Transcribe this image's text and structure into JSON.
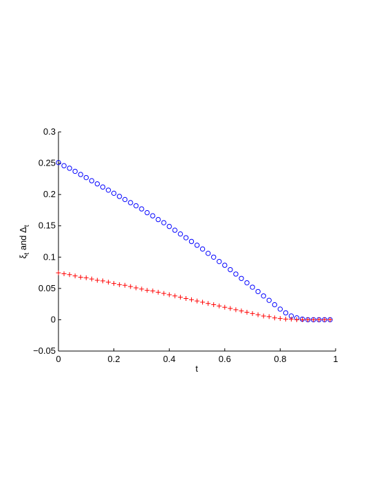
{
  "chart_data": {
    "type": "scatter",
    "x_label": "t",
    "y_label": [
      "ξ",
      "t",
      " and Δ",
      "t"
    ],
    "x": [
      0,
      0.02,
      0.04,
      0.06,
      0.08,
      0.1,
      0.12,
      0.14,
      0.16,
      0.18,
      0.2,
      0.22,
      0.24,
      0.26,
      0.28,
      0.3,
      0.32,
      0.34,
      0.36,
      0.38,
      0.4,
      0.42,
      0.44,
      0.46,
      0.48,
      0.5,
      0.52,
      0.54,
      0.56,
      0.58,
      0.6,
      0.62,
      0.64,
      0.66,
      0.68,
      0.7,
      0.72,
      0.74,
      0.76,
      0.78,
      0.8,
      0.82,
      0.84,
      0.86,
      0.88,
      0.9,
      0.92,
      0.94,
      0.96,
      0.98
    ],
    "series": [
      {
        "marker": "circle",
        "color": "#0000ff",
        "values": [
          0.251,
          0.246,
          0.242,
          0.237,
          0.232,
          0.227,
          0.222,
          0.217,
          0.212,
          0.207,
          0.202,
          0.197,
          0.192,
          0.187,
          0.182,
          0.177,
          0.171,
          0.166,
          0.16,
          0.155,
          0.149,
          0.143,
          0.137,
          0.131,
          0.125,
          0.119,
          0.113,
          0.106,
          0.1,
          0.093,
          0.087,
          0.08,
          0.073,
          0.066,
          0.059,
          0.052,
          0.045,
          0.038,
          0.031,
          0.024,
          0.017,
          0.011,
          0.006,
          0.003,
          0.001,
          0,
          0,
          0,
          0,
          0
        ]
      },
      {
        "marker": "plus",
        "color": "#ff0000",
        "values": [
          0.075,
          0.0735,
          0.072,
          0.07,
          0.068,
          0.067,
          0.065,
          0.063,
          0.062,
          0.06,
          0.058,
          0.056,
          0.055,
          0.053,
          0.051,
          0.049,
          0.047,
          0.046,
          0.044,
          0.042,
          0.04,
          0.038,
          0.036,
          0.034,
          0.032,
          0.03,
          0.028,
          0.026,
          0.024,
          0.022,
          0.02,
          0.018,
          0.016,
          0.014,
          0.012,
          0.01,
          0.008,
          0.006,
          0.005,
          0.003,
          0.002,
          0.001,
          0.001,
          0,
          0,
          0,
          0,
          0,
          0,
          0
        ]
      }
    ],
    "xlim": [
      0,
      1
    ],
    "xticks": [
      0,
      0.2,
      0.4,
      0.6,
      0.8,
      1
    ],
    "ylim": [
      -0.05,
      0.3
    ],
    "yticks": [
      {
        "value": -0.05,
        "label": "−0.05"
      },
      0,
      0.05,
      0.1,
      0.15,
      0.2,
      0.25,
      0.3
    ]
  }
}
